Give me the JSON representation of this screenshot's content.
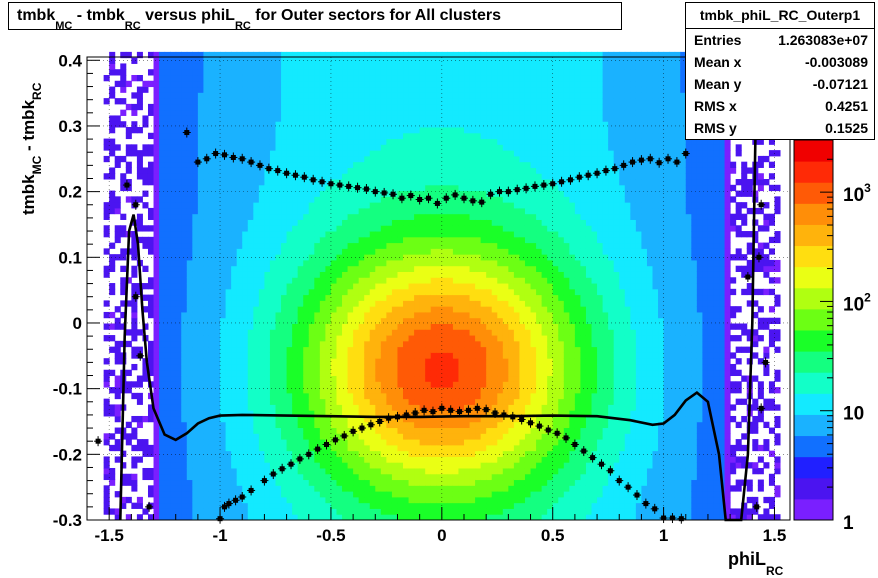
{
  "title": {
    "p1": "tmbk",
    "s1": "MC",
    "p2": " - tmbk",
    "s2": "RC",
    "p3": " versus phiL",
    "s3": "RC",
    "p4": " for Outer sectors for All clusters"
  },
  "stats": {
    "name": "tmbk_phiL_RC_Outerp1",
    "rows": [
      {
        "label": "Entries",
        "value": "1.263083e+07"
      },
      {
        "label": "Mean x",
        "value": "-0.003089"
      },
      {
        "label": "Mean y",
        "value": "-0.07121"
      },
      {
        "label": "RMS x",
        "value": "0.4251"
      },
      {
        "label": "RMS y",
        "value": "0.1525"
      }
    ]
  },
  "chart_data": {
    "type": "heatmap",
    "xlabel": {
      "main": "phiL",
      "sub": "RC"
    },
    "ylabel": {
      "p1": "tmbk",
      "s1": "MC",
      "p2": " - tmbk",
      "s2": "RC"
    },
    "xlim": [
      -1.6,
      1.57
    ],
    "ylim": [
      -0.3,
      0.405
    ],
    "xticks": [
      "-1.5",
      "-1",
      "-0.5",
      "0",
      "0.5",
      "1",
      "1.5"
    ],
    "xtick_values": [
      -1.5,
      -1,
      -0.5,
      0,
      0.5,
      1,
      1.5
    ],
    "yticks": [
      "-0.3",
      "-0.2",
      "-0.1",
      "0",
      "0.1",
      "0.2",
      "0.3",
      "0.4"
    ],
    "ytick_values": [
      -0.3,
      -0.2,
      -0.1,
      0,
      0.1,
      0.2,
      0.3,
      0.4
    ],
    "grid": true,
    "palette": [
      "#7a1fff",
      "#4b14f0",
      "#2020ff",
      "#1170ff",
      "#1ab2ff",
      "#13eaff",
      "#12ffc8",
      "#14ff80",
      "#1aff28",
      "#6cff14",
      "#b0ff11",
      "#eaff14",
      "#ffde10",
      "#ffb30c",
      "#ff8e08",
      "#ff5a06",
      "#ff2a06",
      "#f00000"
    ],
    "colorbar": {
      "scale": "log",
      "range": [
        1,
        3000
      ],
      "labels": [
        {
          "base": "1",
          "exp": "",
          "value": 1
        },
        {
          "base": "10",
          "exp": "",
          "value": 10
        },
        {
          "base": "10",
          "exp": "2",
          "value": 100
        },
        {
          "base": "10",
          "exp": "3",
          "value": 1000
        }
      ]
    },
    "profile_upper": [
      [
        -1.15,
        0.29
      ],
      [
        -1.1,
        0.245
      ],
      [
        -1.06,
        0.25
      ],
      [
        -1.02,
        0.258
      ],
      [
        -0.98,
        0.256
      ],
      [
        -0.94,
        0.252
      ],
      [
        -0.9,
        0.25
      ],
      [
        -0.86,
        0.245
      ],
      [
        -0.82,
        0.24
      ],
      [
        -0.78,
        0.235
      ],
      [
        -0.74,
        0.232
      ],
      [
        -0.7,
        0.228
      ],
      [
        -0.66,
        0.225
      ],
      [
        -0.62,
        0.222
      ],
      [
        -0.58,
        0.218
      ],
      [
        -0.54,
        0.215
      ],
      [
        -0.5,
        0.212
      ],
      [
        -0.46,
        0.21
      ],
      [
        -0.42,
        0.208
      ],
      [
        -0.38,
        0.206
      ],
      [
        -0.34,
        0.204
      ],
      [
        -0.3,
        0.2
      ],
      [
        -0.26,
        0.198
      ],
      [
        -0.22,
        0.196
      ],
      [
        -0.18,
        0.19
      ],
      [
        -0.14,
        0.194
      ],
      [
        -0.1,
        0.188
      ],
      [
        -0.06,
        0.19
      ],
      [
        -0.02,
        0.182
      ],
      [
        0.02,
        0.19
      ],
      [
        0.06,
        0.195
      ],
      [
        0.1,
        0.19
      ],
      [
        0.14,
        0.186
      ],
      [
        0.18,
        0.184
      ],
      [
        0.22,
        0.196
      ],
      [
        0.26,
        0.2
      ],
      [
        0.3,
        0.2
      ],
      [
        0.34,
        0.203
      ],
      [
        0.38,
        0.205
      ],
      [
        0.42,
        0.208
      ],
      [
        0.46,
        0.21
      ],
      [
        0.5,
        0.212
      ],
      [
        0.54,
        0.215
      ],
      [
        0.58,
        0.218
      ],
      [
        0.62,
        0.222
      ],
      [
        0.66,
        0.225
      ],
      [
        0.7,
        0.228
      ],
      [
        0.74,
        0.232
      ],
      [
        0.78,
        0.235
      ],
      [
        0.82,
        0.24
      ],
      [
        0.86,
        0.245
      ],
      [
        0.9,
        0.248
      ],
      [
        0.94,
        0.25
      ],
      [
        0.98,
        0.244
      ],
      [
        1.02,
        0.25
      ],
      [
        1.06,
        0.245
      ],
      [
        1.1,
        0.258
      ]
    ],
    "profile_lower": [
      [
        -1.32,
        -0.28
      ],
      [
        -1.0,
        -0.298
      ],
      [
        -0.98,
        -0.28
      ],
      [
        -0.96,
        -0.275
      ],
      [
        -0.93,
        -0.27
      ],
      [
        -0.9,
        -0.265
      ],
      [
        -0.86,
        -0.255
      ],
      [
        -0.8,
        -0.24
      ],
      [
        -0.76,
        -0.23
      ],
      [
        -0.72,
        -0.222
      ],
      [
        -0.68,
        -0.215
      ],
      [
        -0.64,
        -0.207
      ],
      [
        -0.6,
        -0.2
      ],
      [
        -0.56,
        -0.192
      ],
      [
        -0.52,
        -0.185
      ],
      [
        -0.48,
        -0.178
      ],
      [
        -0.44,
        -0.172
      ],
      [
        -0.4,
        -0.165
      ],
      [
        -0.36,
        -0.16
      ],
      [
        -0.32,
        -0.155
      ],
      [
        -0.28,
        -0.15
      ],
      [
        -0.24,
        -0.145
      ],
      [
        -0.2,
        -0.143
      ],
      [
        -0.16,
        -0.14
      ],
      [
        -0.12,
        -0.137
      ],
      [
        -0.08,
        -0.133
      ],
      [
        -0.04,
        -0.135
      ],
      [
        0.0,
        -0.13
      ],
      [
        0.04,
        -0.133
      ],
      [
        0.08,
        -0.135
      ],
      [
        0.12,
        -0.133
      ],
      [
        0.16,
        -0.13
      ],
      [
        0.2,
        -0.132
      ],
      [
        0.24,
        -0.137
      ],
      [
        0.28,
        -0.14
      ],
      [
        0.32,
        -0.143
      ],
      [
        0.36,
        -0.147
      ],
      [
        0.4,
        -0.152
      ],
      [
        0.44,
        -0.157
      ],
      [
        0.48,
        -0.163
      ],
      [
        0.52,
        -0.168
      ],
      [
        0.56,
        -0.175
      ],
      [
        0.6,
        -0.185
      ],
      [
        0.64,
        -0.195
      ],
      [
        0.68,
        -0.205
      ],
      [
        0.72,
        -0.215
      ],
      [
        0.76,
        -0.225
      ],
      [
        0.8,
        -0.24
      ],
      [
        0.84,
        -0.25
      ],
      [
        0.88,
        -0.262
      ],
      [
        0.92,
        -0.275
      ],
      [
        0.96,
        -0.283
      ],
      [
        1.0,
        -0.297
      ],
      [
        1.04,
        -0.297
      ],
      [
        1.08,
        -0.298
      ]
    ],
    "fit_curve": [
      [
        -1.45,
        -0.3
      ],
      [
        -1.43,
        -0.02
      ],
      [
        -1.41,
        0.14
      ],
      [
        -1.39,
        0.165
      ],
      [
        -1.37,
        0.12
      ],
      [
        -1.35,
        0.02
      ],
      [
        -1.33,
        -0.06
      ],
      [
        -1.3,
        -0.13
      ],
      [
        -1.25,
        -0.17
      ],
      [
        -1.2,
        -0.178
      ],
      [
        -1.15,
        -0.168
      ],
      [
        -1.1,
        -0.153
      ],
      [
        -1.05,
        -0.145
      ],
      [
        -1.0,
        -0.141
      ],
      [
        -0.9,
        -0.14
      ],
      [
        -0.7,
        -0.141
      ],
      [
        -0.5,
        -0.142
      ],
      [
        -0.3,
        -0.143
      ],
      [
        -0.1,
        -0.143
      ],
      [
        0.1,
        -0.142
      ],
      [
        0.3,
        -0.142
      ],
      [
        0.5,
        -0.141
      ],
      [
        0.7,
        -0.142
      ],
      [
        0.85,
        -0.148
      ],
      [
        0.95,
        -0.155
      ],
      [
        1.0,
        -0.153
      ],
      [
        1.05,
        -0.14
      ],
      [
        1.1,
        -0.118
      ],
      [
        1.15,
        -0.106
      ],
      [
        1.2,
        -0.12
      ],
      [
        1.25,
        -0.2
      ],
      [
        1.28,
        -0.3
      ],
      [
        1.35,
        -0.3
      ],
      [
        1.38,
        -0.2
      ],
      [
        1.4,
        0.0
      ],
      [
        1.41,
        0.2
      ],
      [
        1.42,
        0.4
      ]
    ],
    "outliers": [
      [
        -1.38,
        0.18
      ],
      [
        -1.42,
        0.21
      ],
      [
        -1.36,
        -0.05
      ],
      [
        -1.55,
        -0.18
      ],
      [
        -1.38,
        0.04
      ],
      [
        1.38,
        0.07
      ],
      [
        1.44,
        0.18
      ],
      [
        1.43,
        0.1
      ],
      [
        1.46,
        -0.06
      ],
      [
        1.42,
        -0.28
      ],
      [
        1.44,
        -0.13
      ]
    ]
  }
}
